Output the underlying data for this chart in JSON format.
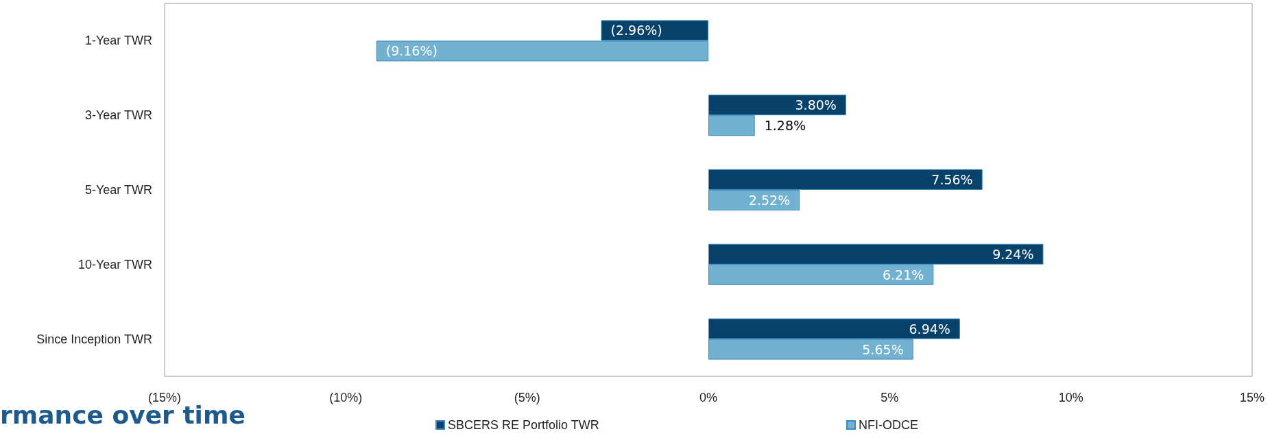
{
  "chart_data": {
    "type": "bar",
    "orientation": "horizontal",
    "categories": [
      "1-Year TWR",
      "3-Year TWR",
      "5-Year TWR",
      "10-Year TWR",
      "Since Inception TWR"
    ],
    "series": [
      {
        "name": "SBCERS RE Portfolio TWR",
        "color": "#08426a",
        "values": [
          -2.96,
          3.8,
          7.56,
          9.24,
          6.94
        ],
        "value_labels": [
          "(2.96%)",
          "3.80%",
          "7.56%",
          "9.24%",
          "6.94%"
        ]
      },
      {
        "name": "NFI-ODCE",
        "color": "#72b1d0",
        "values": [
          -9.16,
          1.28,
          2.52,
          6.21,
          5.65
        ],
        "value_labels": [
          "(9.16%)",
          "1.28%",
          "2.52%",
          "6.21%",
          "5.65%"
        ]
      }
    ],
    "xlim": [
      -15,
      15
    ],
    "xticks": [
      {
        "value": -15,
        "label": "(15%)"
      },
      {
        "value": -10,
        "label": "(10%)"
      },
      {
        "value": -5,
        "label": "(5%)"
      },
      {
        "value": 0,
        "label": "0%"
      },
      {
        "value": 5,
        "label": "5%"
      },
      {
        "value": 10,
        "label": "10%"
      },
      {
        "value": 15,
        "label": "15%"
      }
    ],
    "grid": false,
    "legend": "bottom",
    "annotations": [
      "rmance over time"
    ]
  }
}
